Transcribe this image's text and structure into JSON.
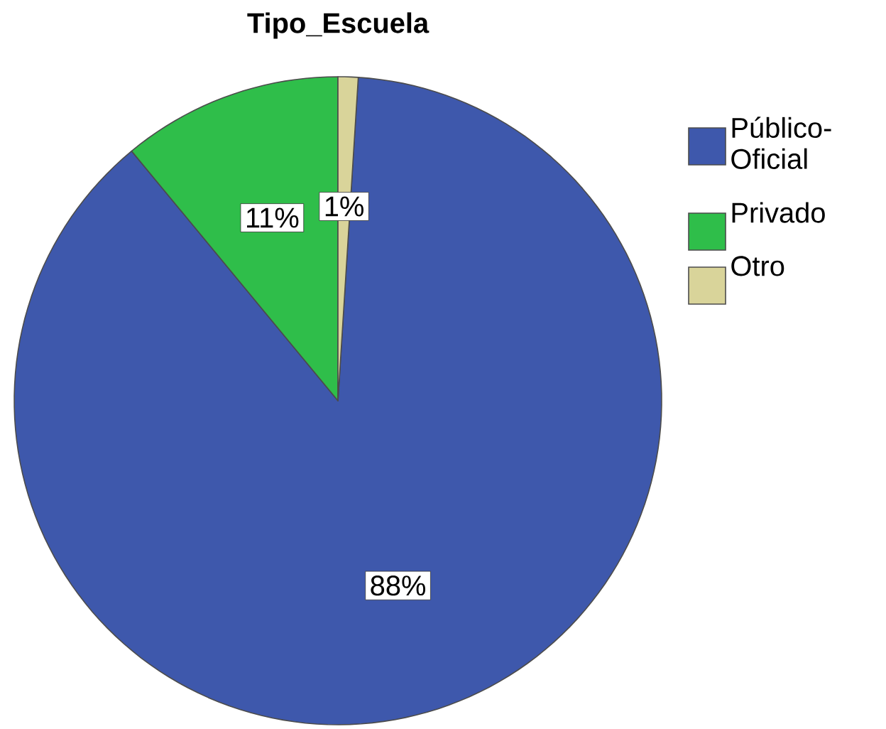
{
  "chart_data": {
    "type": "pie",
    "title": "Tipo_Escuela",
    "categories": [
      "Público-Oficial",
      "Privado",
      "Otro"
    ],
    "values": [
      88,
      11,
      1
    ],
    "colors": [
      "#3e58ac",
      "#2fbe4a",
      "#d9d49a"
    ],
    "value_labels": [
      "88%",
      "11%",
      "1%"
    ],
    "legend": "right"
  }
}
